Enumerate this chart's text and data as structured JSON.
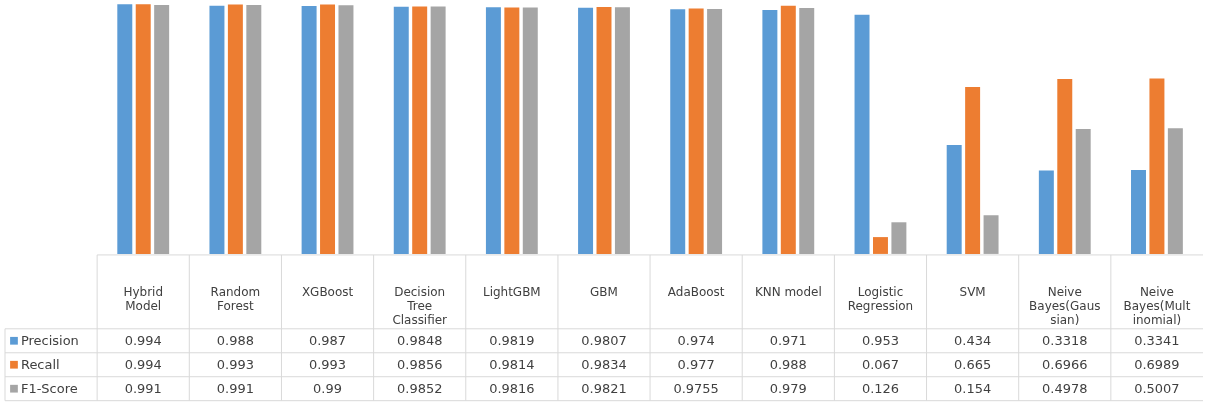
{
  "chart_data": {
    "type": "bar",
    "categories": [
      "Hybrid Model",
      "Random Forest",
      "XGBoost",
      "Decision Tree Classifier",
      "LightGBM",
      "GBM",
      "AdaBoost",
      "KNN model",
      "Logistic Regression",
      "SVM",
      "Neive Bayes(Gaussian)",
      "Neive Bayes(Multinomial)"
    ],
    "series": [
      {
        "name": "Precision",
        "color": "#5b9bd5",
        "values": [
          0.994,
          0.988,
          0.987,
          0.9848,
          0.9819,
          0.9807,
          0.974,
          0.971,
          0.953,
          0.434,
          0.3318,
          0.3341
        ]
      },
      {
        "name": "Recall",
        "color": "#ed7d31",
        "values": [
          0.994,
          0.993,
          0.993,
          0.9856,
          0.9814,
          0.9834,
          0.977,
          0.988,
          0.067,
          0.665,
          0.6966,
          0.6989
        ]
      },
      {
        "name": "F1-Score",
        "color": "#a5a5a5",
        "values": [
          0.991,
          0.991,
          0.99,
          0.9852,
          0.9816,
          0.9821,
          0.9755,
          0.979,
          0.126,
          0.154,
          0.4978,
          0.5007
        ]
      }
    ],
    "data_labels": true,
    "legend": "bottom"
  }
}
